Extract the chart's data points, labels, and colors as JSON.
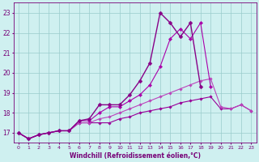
{
  "xlabel": "Windchill (Refroidissement éolien,°C)",
  "x_values": [
    0,
    1,
    2,
    3,
    4,
    5,
    6,
    7,
    8,
    9,
    10,
    11,
    12,
    13,
    14,
    15,
    16,
    17,
    18,
    19,
    20,
    21,
    22,
    23
  ],
  "series": [
    {
      "y": [
        17.0,
        16.7,
        16.9,
        17.0,
        17.1,
        17.1,
        17.5,
        17.5,
        17.5,
        17.5,
        17.7,
        17.8,
        18.0,
        18.1,
        18.2,
        18.3,
        18.5,
        18.6,
        18.7,
        18.8,
        18.2,
        18.2,
        18.4,
        18.1
      ],
      "color": "#990099",
      "linewidth": 0.8,
      "marker": "D",
      "markersize": 1.8
    },
    {
      "y": [
        17.0,
        16.7,
        16.9,
        17.0,
        17.1,
        17.1,
        17.5,
        17.5,
        17.7,
        17.8,
        18.0,
        18.2,
        18.4,
        18.6,
        18.8,
        19.0,
        19.2,
        19.4,
        19.6,
        19.7,
        18.3,
        18.2,
        18.4,
        18.1
      ],
      "color": "#bb44bb",
      "linewidth": 0.8,
      "marker": "D",
      "markersize": 1.8
    },
    {
      "y": [
        17.0,
        16.7,
        16.9,
        17.0,
        17.1,
        17.1,
        17.6,
        17.6,
        18.0,
        18.3,
        18.3,
        18.6,
        18.9,
        19.4,
        20.3,
        21.7,
        22.2,
        21.7,
        22.5,
        19.3,
        null,
        null,
        null,
        null
      ],
      "color": "#aa00aa",
      "linewidth": 0.8,
      "marker": "D",
      "markersize": 2.2
    },
    {
      "y": [
        17.0,
        16.7,
        16.9,
        17.0,
        17.1,
        17.1,
        17.6,
        17.7,
        18.4,
        18.4,
        18.4,
        18.9,
        19.6,
        20.5,
        23.0,
        22.5,
        21.8,
        22.5,
        19.3,
        null,
        null,
        null,
        null,
        null
      ],
      "color": "#880088",
      "linewidth": 1.0,
      "marker": "D",
      "markersize": 2.5
    }
  ],
  "ylim": [
    16.5,
    23.5
  ],
  "xlim": [
    -0.5,
    23.5
  ],
  "yticks": [
    17,
    18,
    19,
    20,
    21,
    22,
    23
  ],
  "xticks": [
    0,
    1,
    2,
    3,
    4,
    5,
    6,
    7,
    8,
    9,
    10,
    11,
    12,
    13,
    14,
    15,
    16,
    17,
    18,
    19,
    20,
    21,
    22,
    23
  ],
  "xtick_fontsize": 4.5,
  "ytick_fontsize": 5.5,
  "xlabel_fontsize": 5.5,
  "background_color": "#cff0f0",
  "grid_color": "#99cccc",
  "spine_color": "#770077",
  "tick_color": "#770077"
}
